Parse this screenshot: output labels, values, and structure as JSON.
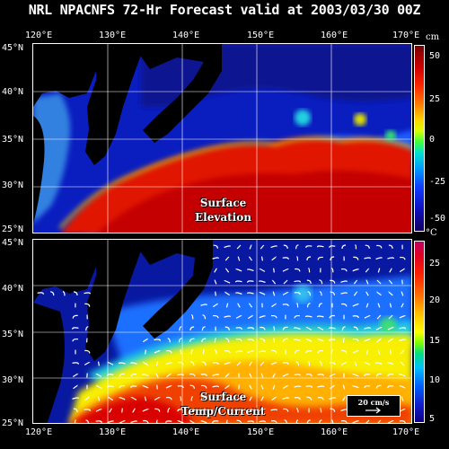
{
  "title": "NRL NPACNFS 72-Hr Forecast valid at 2003/03/30 00Z",
  "lon_labels": [
    "120°E",
    "130°E",
    "140°E",
    "150°E",
    "160°E",
    "170°E"
  ],
  "lat_labels": [
    "45°N",
    "40°N",
    "35°N",
    "30°N",
    "25°N"
  ],
  "panel_top": {
    "label_line1": "Surface",
    "label_line2": "Elevation",
    "colorbar_unit": "cm",
    "colorbar_ticks": [
      "50",
      "25",
      "0",
      "-25",
      "-50"
    ]
  },
  "panel_bottom": {
    "label_line1": "Surface",
    "label_line2": "Temp/Current",
    "colorbar_unit": "°C",
    "colorbar_ticks": [
      "25",
      "20",
      "15",
      "10",
      "5"
    ],
    "reference_vector": "20 cm/s"
  },
  "colors": {
    "land": "#000000",
    "grid": "#ffffff",
    "warm": "#e81000",
    "cold": "#0a1eb0"
  }
}
